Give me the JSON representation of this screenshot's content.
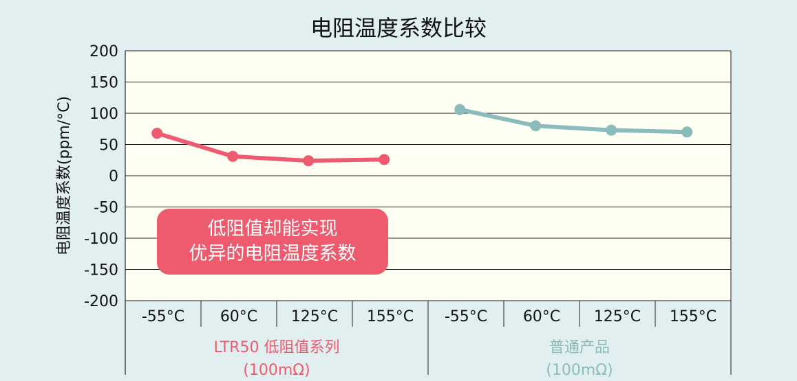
{
  "chart_data": {
    "type": "line",
    "title": "电阻温度系数比较",
    "ylabel": "电阻温度系数(ppm/°C)",
    "xlabel": "",
    "ylim": [
      -200,
      200
    ],
    "yticks": [
      200,
      150,
      100,
      50,
      0,
      -50,
      -100,
      -150,
      -200
    ],
    "grid": true,
    "groups": [
      {
        "label_line1": "LTR50 低阻值系列",
        "label_line2": "(100mΩ)",
        "color": "#ee5a6e",
        "categories": [
          "-55°C",
          "60°C",
          "125°C",
          "155°C"
        ],
        "values": [
          68,
          31,
          24,
          26
        ]
      },
      {
        "label_line1": "普通产品",
        "label_line2": "(100mΩ)",
        "color": "#8bbcbc",
        "categories": [
          "-55°C",
          "60°C",
          "125°C",
          "155°C"
        ],
        "values": [
          106,
          80,
          73,
          70
        ]
      }
    ]
  },
  "callout": {
    "line1": "低阻值却能实现",
    "line2": "优异的电阻温度系数",
    "color": "#ee5a6e"
  },
  "colors": {
    "plot_background": "#fffff3",
    "page_background": "#e2eff1"
  }
}
